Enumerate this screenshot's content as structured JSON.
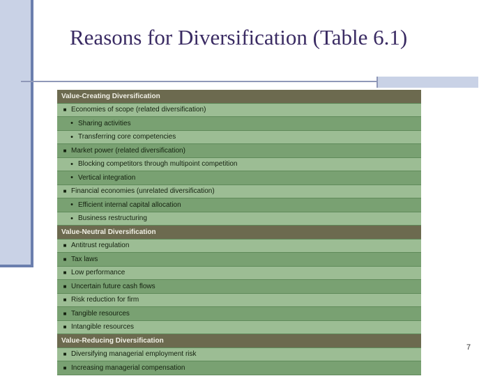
{
  "slide": {
    "title": "Reasons for Diversification (Table 6.1)",
    "page_number": "7"
  },
  "table": {
    "rows": [
      {
        "type": "header",
        "text": "Value-Creating Diversification"
      },
      {
        "type": "item",
        "marker": "■",
        "text": "Economies of scope (related diversification)"
      },
      {
        "type": "sub",
        "marker": "•",
        "text": "Sharing activities"
      },
      {
        "type": "sub",
        "marker": "•",
        "text": "Transferring core competencies"
      },
      {
        "type": "item",
        "marker": "■",
        "text": "Market power (related diversification)"
      },
      {
        "type": "sub",
        "marker": "•",
        "text": "Blocking competitors through multipoint competition"
      },
      {
        "type": "sub",
        "marker": "•",
        "text": "Vertical integration"
      },
      {
        "type": "item",
        "marker": "■",
        "text": "Financial economies (unrelated diversification)"
      },
      {
        "type": "sub",
        "marker": "•",
        "text": "Efficient internal capital allocation"
      },
      {
        "type": "sub",
        "marker": "•",
        "text": "Business restructuring"
      },
      {
        "type": "header",
        "text": "Value-Neutral Diversification"
      },
      {
        "type": "item",
        "marker": "■",
        "text": "Antitrust regulation"
      },
      {
        "type": "item",
        "marker": "■",
        "text": "Tax laws"
      },
      {
        "type": "item",
        "marker": "■",
        "text": "Low performance"
      },
      {
        "type": "item",
        "marker": "■",
        "text": "Uncertain future cash flows"
      },
      {
        "type": "item",
        "marker": "■",
        "text": "Risk reduction for firm"
      },
      {
        "type": "item",
        "marker": "■",
        "text": "Tangible resources"
      },
      {
        "type": "item",
        "marker": "■",
        "text": "Intangible resources"
      },
      {
        "type": "header",
        "text": "Value-Reducing Diversification"
      },
      {
        "type": "item",
        "marker": "■",
        "text": "Diversifying managerial employment risk"
      },
      {
        "type": "item",
        "marker": "■",
        "text": "Increasing managerial compensation"
      }
    ]
  },
  "colors": {
    "title": "#3a2b63",
    "header_row": "#6c6a4f",
    "row_light": "#9cbd94",
    "row_dark": "#79a172"
  }
}
